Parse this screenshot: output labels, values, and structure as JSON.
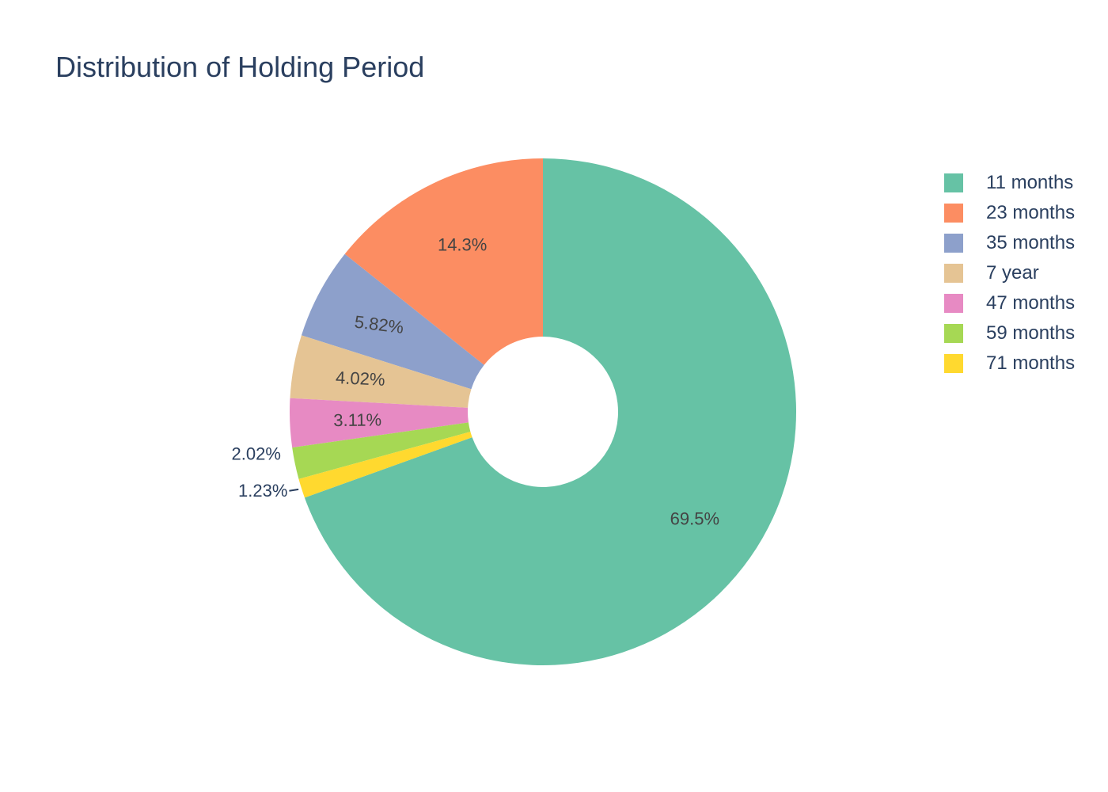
{
  "chart_data": {
    "type": "pie",
    "title": "Distribution of Holding Period",
    "hole": true,
    "legend_position": "top-right",
    "slices": [
      {
        "label": "11 months",
        "value": 69.5,
        "text": "69.5%",
        "color": "#66c2a5"
      },
      {
        "label": "23 months",
        "value": 14.3,
        "text": "14.3%",
        "color": "#fc8d62"
      },
      {
        "label": "35 months",
        "value": 5.82,
        "text": "5.82%",
        "color": "#8da0cb"
      },
      {
        "label": "7 year",
        "value": 4.02,
        "text": "4.02%",
        "color": "#e5c494"
      },
      {
        "label": "47 months",
        "value": 3.11,
        "text": "3.11%",
        "color": "#e78ac3"
      },
      {
        "label": "59 months",
        "value": 2.02,
        "text": "2.02%",
        "color": "#a6d854"
      },
      {
        "label": "71 months",
        "value": 1.23,
        "text": "1.23%",
        "color": "#ffd92f"
      }
    ]
  }
}
